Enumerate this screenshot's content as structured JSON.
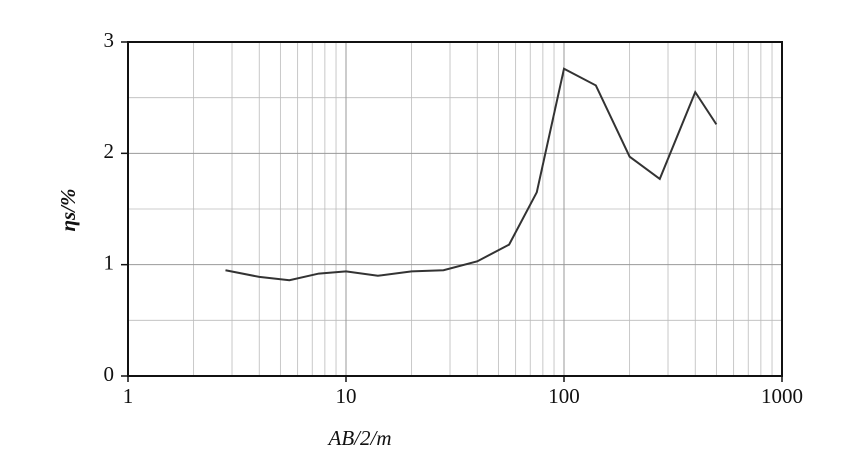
{
  "chart_data": {
    "type": "line",
    "x_label": "AB/2/m",
    "y_label": "ηs/%",
    "x": [
      2.8,
      4,
      5.5,
      7.5,
      10,
      14,
      20,
      28,
      40,
      56,
      75,
      100,
      140,
      200,
      275,
      400,
      500
    ],
    "series": [
      {
        "name": "ηs",
        "color": "#333333",
        "values": [
          0.95,
          0.89,
          0.86,
          0.92,
          0.94,
          0.9,
          0.94,
          0.95,
          1.03,
          1.18,
          1.65,
          2.76,
          2.61,
          1.97,
          1.77,
          2.55,
          2.26
        ]
      }
    ],
    "xlim": [
      1,
      1000
    ],
    "xticks": [
      1,
      10,
      100,
      1000
    ],
    "xscale": "log",
    "ylim": [
      0,
      3
    ],
    "yticks": [
      0,
      1,
      2,
      3
    ],
    "yminor": [
      0.5,
      1.5,
      2.5
    ],
    "grid": true
  }
}
